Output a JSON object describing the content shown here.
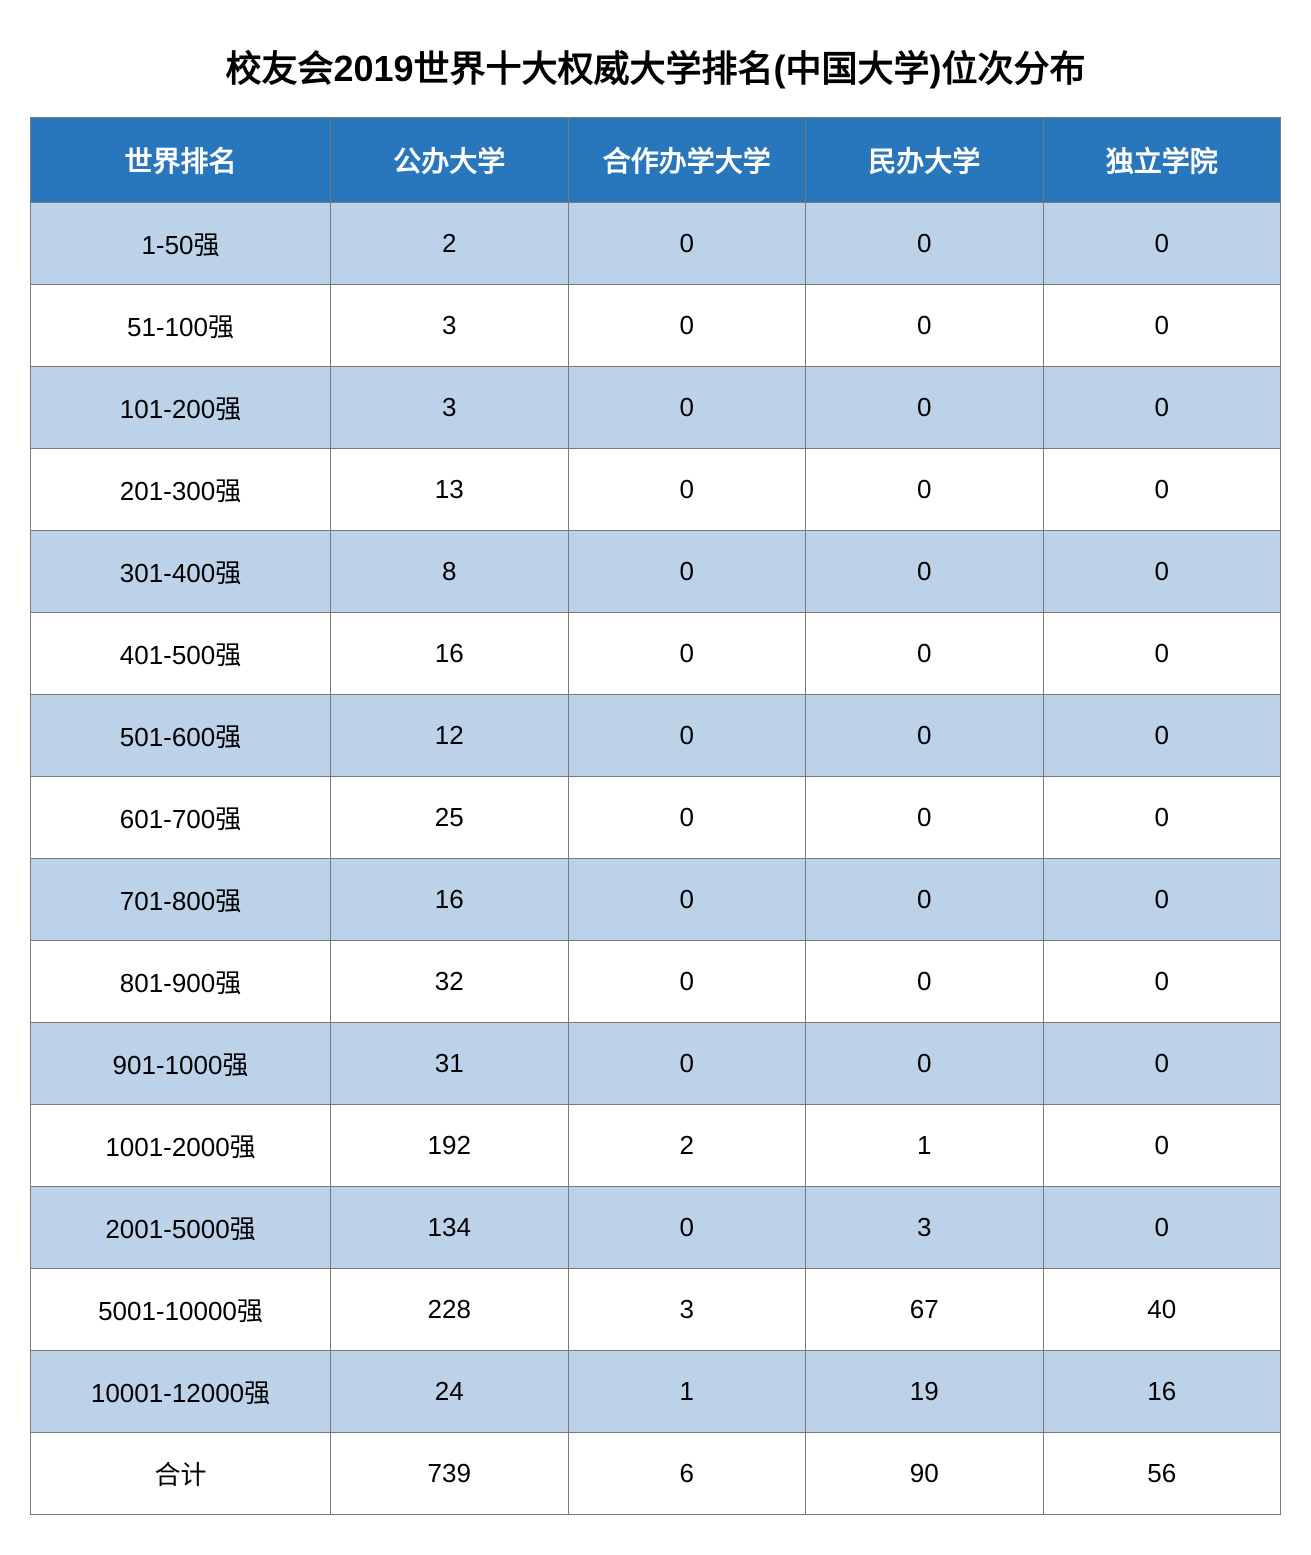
{
  "title": "校友会2019世界十大权威大学排名(中国大学)位次分布",
  "table": {
    "type": "table",
    "header_bg_color": "#2876bc",
    "header_text_color": "#ffffff",
    "row_odd_bg_color": "#bcd2e9",
    "row_even_bg_color": "#ffffff",
    "border_color": "#7a7a7a",
    "title_fontsize": 36,
    "header_fontsize": 28,
    "cell_fontsize": 26,
    "columns": [
      {
        "key": "rank",
        "label": "世界排名",
        "width": "24%"
      },
      {
        "key": "public",
        "label": "公办大学",
        "width": "19%"
      },
      {
        "key": "coop",
        "label": "合作办学大学",
        "width": "19%"
      },
      {
        "key": "private",
        "label": "民办大学",
        "width": "19%"
      },
      {
        "key": "independent",
        "label": "独立学院",
        "width": "19%"
      }
    ],
    "rows": [
      {
        "rank": "1-50强",
        "public": "2",
        "coop": "0",
        "private": "0",
        "independent": "0"
      },
      {
        "rank": "51-100强",
        "public": "3",
        "coop": "0",
        "private": "0",
        "independent": "0"
      },
      {
        "rank": "101-200强",
        "public": "3",
        "coop": "0",
        "private": "0",
        "independent": "0"
      },
      {
        "rank": "201-300强",
        "public": "13",
        "coop": "0",
        "private": "0",
        "independent": "0"
      },
      {
        "rank": "301-400强",
        "public": "8",
        "coop": "0",
        "private": "0",
        "independent": "0"
      },
      {
        "rank": "401-500强",
        "public": "16",
        "coop": "0",
        "private": "0",
        "independent": "0"
      },
      {
        "rank": "501-600强",
        "public": "12",
        "coop": "0",
        "private": "0",
        "independent": "0"
      },
      {
        "rank": "601-700强",
        "public": "25",
        "coop": "0",
        "private": "0",
        "independent": "0"
      },
      {
        "rank": "701-800强",
        "public": "16",
        "coop": "0",
        "private": "0",
        "independent": "0"
      },
      {
        "rank": "801-900强",
        "public": "32",
        "coop": "0",
        "private": "0",
        "independent": "0"
      },
      {
        "rank": "901-1000强",
        "public": "31",
        "coop": "0",
        "private": "0",
        "independent": "0"
      },
      {
        "rank": "1001-2000强",
        "public": "192",
        "coop": "2",
        "private": "1",
        "independent": "0"
      },
      {
        "rank": "2001-5000强",
        "public": "134",
        "coop": "0",
        "private": "3",
        "independent": "0"
      },
      {
        "rank": "5001-10000强",
        "public": "228",
        "coop": "3",
        "private": "67",
        "independent": "40"
      },
      {
        "rank": "10001-12000强",
        "public": "24",
        "coop": "1",
        "private": "19",
        "independent": "16"
      },
      {
        "rank": "合计",
        "public": "739",
        "coop": "6",
        "private": "90",
        "independent": "56"
      }
    ]
  }
}
